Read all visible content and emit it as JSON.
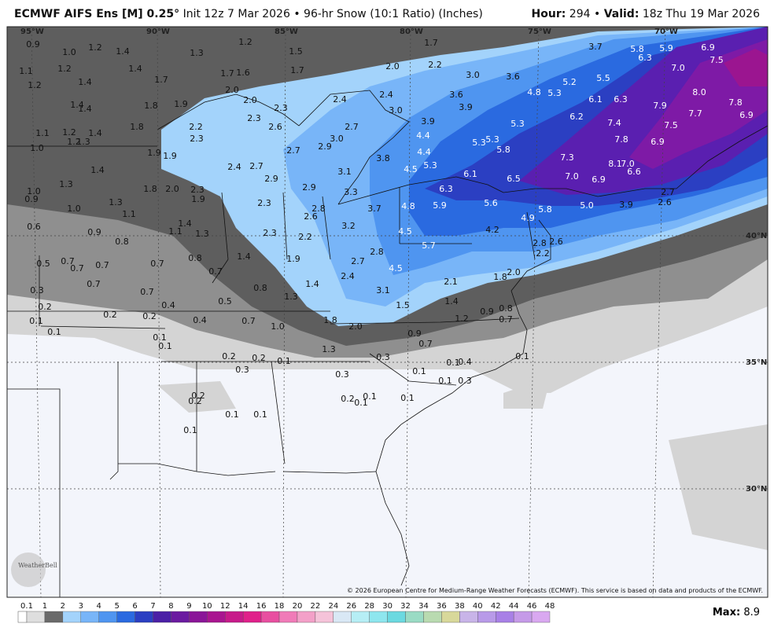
{
  "header": {
    "title": "ECMWF AIFS Ens [M] 0.25°",
    "init": "Init 12z 7 Mar 2026",
    "separator": "•",
    "product": "96-hr Snow (10:1 Ratio) (Inches)",
    "hour_label": "Hour:",
    "hour": "294",
    "valid_label": "Valid:",
    "valid": "18z Thu 19 Mar 2026"
  },
  "longitudes": [
    "95°W",
    "90°W",
    "85°W",
    "80°W",
    "75°W",
    "70°W"
  ],
  "latitudes": [
    "40°N",
    "35°N",
    "30°N"
  ],
  "map_values": [
    "0.9",
    "1.0",
    "1.2",
    "1.4",
    "1.3",
    "1.2",
    "1.5",
    "1.7",
    "1.1",
    "1.2",
    "1.4",
    "1.7",
    "1.6",
    "1.7",
    "2.2",
    "2.0",
    "3.0",
    "3.6",
    "3.7",
    "5.8",
    "6.3",
    "5.9",
    "6.9",
    "7.5",
    "7.0",
    "1.2",
    "1.4",
    "1.7",
    "2.0",
    "2.0",
    "2.4",
    "2.4",
    "3.0",
    "3.6",
    "3.9",
    "4.8",
    "5.3",
    "5.2",
    "5.5",
    "6.1",
    "6.3",
    "8.0",
    "7.9",
    "7.8",
    "7.7",
    "6.9",
    "1.4",
    "1.4",
    "1.8",
    "1.9",
    "2.3",
    "2.3",
    "2.2",
    "2.6",
    "2.7",
    "3.9",
    "5.3",
    "6.2",
    "7.4",
    "7.5",
    "1.1",
    "1.2",
    "1.8",
    "1.4",
    "1.2",
    "1.3",
    "2.3",
    "3.0",
    "4.4",
    "5.3",
    "5.3",
    "7.8",
    "6.9",
    "1.0",
    "1.9",
    "1.9",
    "2.7",
    "2.9",
    "3.8",
    "4.4",
    "5.8",
    "7.3",
    "1.4",
    "2.4",
    "2.7",
    "2.9",
    "3.1",
    "4.5",
    "5.3",
    "6.1",
    "8.1",
    "7.0",
    "6.6",
    "7.0",
    "6.9",
    "6.5",
    "1.3",
    "1.8",
    "2.0",
    "2.3",
    "2.9",
    "3.3",
    "6.3",
    "1.0",
    "0.9",
    "1.9",
    "1.3",
    "1.0",
    "2.3",
    "2.8",
    "3.7",
    "4.8",
    "5.9",
    "5.6",
    "5.0",
    "3.9",
    "5.8",
    "2.7",
    "2.6",
    "1.1",
    "2.6",
    "4.9",
    "0.6",
    "1.4",
    "3.2",
    "1.1",
    "1.3",
    "0.9",
    "2.3",
    "2.2",
    "4.5",
    "4.2",
    "0.8",
    "2.8",
    "2.6",
    "5.7",
    "1.4",
    "1.9",
    "2.8",
    "2.7",
    "2.2",
    "0.5",
    "0.7",
    "0.7",
    "0.7",
    "0.8",
    "0.7",
    "4.5",
    "2.0",
    "1.8",
    "2.4",
    "0.7",
    "0.7",
    "2.1",
    "0.8",
    "1.4",
    "0.3",
    "0.7",
    "1.3",
    "3.1",
    "0.5",
    "1.4",
    "0.4",
    "1.5",
    "0.2",
    "0.9",
    "0.8",
    "0.2",
    "0.2",
    "1.2",
    "0.7",
    "0.1",
    "0.4",
    "0.7",
    "1.8",
    "1.0",
    "2.0",
    "0.1",
    "0.1",
    "0.9",
    "0.7",
    "0.1",
    "1.3",
    "0.2",
    "0.2",
    "0.1",
    "0.3",
    "0.1",
    "0.4",
    "0.3",
    "0.1",
    "0.3",
    "0.1",
    "0.3",
    "0.2",
    "0.2",
    "0.2",
    "0.1",
    "0.1",
    "0.1",
    "0.1",
    "0.1",
    "0.1",
    "0.1"
  ],
  "colorbar": {
    "labels": [
      "0.1",
      "1",
      "2",
      "3",
      "4",
      "5",
      "6",
      "7",
      "8",
      "9",
      "10",
      "12",
      "14",
      "16",
      "18",
      "20",
      "22",
      "24",
      "26",
      "28",
      "30",
      "32",
      "34",
      "36",
      "38",
      "40",
      "42",
      "44",
      "46",
      "48"
    ],
    "colors": [
      "#dedede",
      "#6a6a6a",
      "#a3d3fb",
      "#78b5f8",
      "#4f95f0",
      "#2a6ae0",
      "#2b3fc2",
      "#4b1fa6",
      "#6b1aa0",
      "#8a1598",
      "#a91590",
      "#c71a8a",
      "#e0208a",
      "#e84fa0",
      "#f07bb8",
      "#f3a0c8",
      "#f5c3d9",
      "#d9e8f5",
      "#b6eef5",
      "#8ee6ee",
      "#6bd9e0",
      "#9adbc4",
      "#b9dab0",
      "#d8d89a",
      "#c8b4e8",
      "#b89ae8",
      "#a880e6",
      "#c59ae8",
      "#d9a8f0"
    ]
  },
  "max": {
    "label": "Max:",
    "value": "8.9"
  },
  "logo": "WeatherBell",
  "copyright": "© 2026 European Centre for Medium-Range Weather Forecasts (ECMWF). This service is based on data and products of the ECMWF."
}
